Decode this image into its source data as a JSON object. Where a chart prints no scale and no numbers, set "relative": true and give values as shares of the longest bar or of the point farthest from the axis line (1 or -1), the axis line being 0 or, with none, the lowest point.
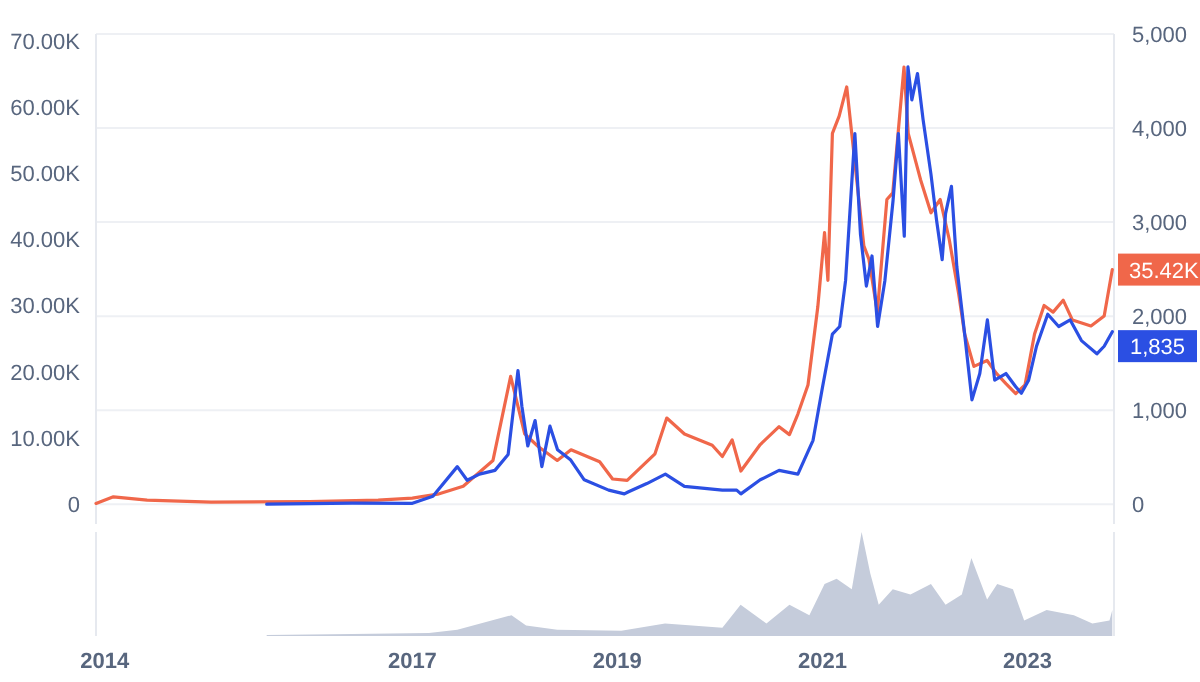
{
  "chart_data": [
    {
      "type": "line",
      "xlim": [
        "2013-12-01",
        "2023-11-05"
      ],
      "ylim": [
        -3,
        71
      ],
      "y2lim": [
        -210,
        5000
      ],
      "yticks": [
        0,
        {
          "value": 10,
          "label": "10.00K"
        },
        {
          "value": 20,
          "label": "20.00K"
        },
        {
          "value": 30,
          "label": "30.00K"
        },
        {
          "value": 40,
          "label": "40.00K"
        },
        {
          "value": 50,
          "label": "50.00K"
        },
        {
          "value": 60,
          "label": "60.00K"
        },
        {
          "value": 70,
          "label": "70.00K"
        }
      ],
      "y2ticks": [
        0,
        {
          "value": 1000,
          "label": "1,000"
        },
        {
          "value": 2000,
          "label": "2,000"
        },
        {
          "value": 3000,
          "label": "3,000"
        },
        {
          "value": 4000,
          "label": "4,000"
        },
        {
          "value": 5000,
          "label": "5,000"
        }
      ],
      "grid": "y",
      "tick_labels": "y",
      "series": [
        {
          "color": "#f0674a",
          "x": [
            "2013-12-01",
            "2014-02-01",
            "2014-06-01",
            "2015-01-15",
            "2016-01-01",
            "2016-09-01",
            "2017-01-01",
            "2017-04-01",
            "2017-07-01",
            "2017-10-15",
            "2017-12-17",
            "2018-02-05",
            "2018-03-25",
            "2018-06-01",
            "2018-07-20",
            "2018-10-30",
            "2018-12-15",
            "2019-02-05",
            "2019-05-15",
            "2019-06-26",
            "2019-08-28",
            "2019-12-05",
            "2020-01-10",
            "2020-02-14",
            "2020-03-16",
            "2020-05-24",
            "2020-07-30",
            "2020-09-05",
            "2020-10-05",
            "2020-11-10",
            "2020-12-15",
            "2021-01-08",
            "2021-01-20",
            "2021-02-05",
            "2021-03-01",
            "2021-03-28",
            "2021-04-25",
            "2021-05-28",
            "2021-06-15",
            "2021-07-15",
            "2021-08-18",
            "2021-09-08",
            "2021-10-18",
            "2021-11-02",
            "2021-12-16",
            "2022-01-22",
            "2022-02-24",
            "2022-03-28",
            "2022-05-01",
            "2022-05-22",
            "2022-06-24",
            "2022-08-10",
            "2022-09-13",
            "2022-10-16",
            "2022-11-20",
            "2022-12-23",
            "2023-01-26",
            "2023-03-01",
            "2023-04-02",
            "2023-05-08",
            "2023-06-10",
            "2023-08-15",
            "2023-10-01",
            "2023-10-30"
          ],
          "values": [
            0.1,
            1.1,
            0.6,
            0.3,
            0.4,
            0.6,
            0.9,
            1.5,
            2.7,
            6.6,
            19.3,
            10.6,
            8.7,
            6.6,
            8.2,
            6.4,
            3.8,
            3.6,
            7.6,
            13,
            10.6,
            8.9,
            7.2,
            9.7,
            5,
            9,
            11.7,
            10.5,
            13.6,
            18,
            29.8,
            41,
            33.8,
            56,
            58.6,
            63,
            52,
            39,
            37,
            29,
            46,
            47,
            66,
            56,
            49,
            44,
            46,
            40,
            31.7,
            25.7,
            20.8,
            21.7,
            19.7,
            18.2,
            16.7,
            18,
            25.7,
            30,
            29,
            30.8,
            27.8,
            26.9,
            28.4,
            35.42
          ],
          "value_labels": [
            null,
            null,
            null,
            null,
            null,
            null,
            null,
            null,
            null,
            null,
            null,
            null,
            null,
            null,
            null,
            null,
            null,
            null,
            null,
            null,
            null,
            null,
            null,
            null,
            null,
            null,
            null,
            null,
            null,
            null,
            null,
            null,
            null,
            null,
            null,
            null,
            null,
            null,
            null,
            null,
            null,
            null,
            null,
            null,
            null,
            null,
            null,
            null,
            null,
            null,
            null,
            null,
            null,
            null,
            null,
            null,
            null,
            null,
            null,
            null,
            null,
            null,
            null,
            "35.42K"
          ]
        },
        {
          "color": "#2b4fe3",
          "axis": "y2",
          "x": [
            "2015-08-01",
            "2016-06-01",
            "2017-01-01",
            "2017-03-15",
            "2017-06-10",
            "2017-07-15",
            "2017-08-28",
            "2017-10-22",
            "2017-12-08",
            "2018-01-12",
            "2018-01-26",
            "2018-02-16",
            "2018-03-14",
            "2018-04-07",
            "2018-05-06",
            "2018-06-02",
            "2018-07-19",
            "2018-09-05",
            "2018-12-01",
            "2019-01-26",
            "2019-02-08",
            "2019-04-16",
            "2019-06-21",
            "2019-08-28",
            "2020-01-10",
            "2020-03-01",
            "2020-03-16",
            "2020-05-24",
            "2020-07-30",
            "2020-10-05",
            "2020-11-28",
            "2021-01-01",
            "2021-02-05",
            "2021-03-03",
            "2021-03-24",
            "2021-04-26",
            "2021-05-16",
            "2021-06-06",
            "2021-06-26",
            "2021-07-16",
            "2021-08-11",
            "2021-09-09",
            "2021-09-28",
            "2021-10-19",
            "2021-11-01",
            "2021-11-15",
            "2021-12-05",
            "2021-12-25",
            "2022-01-22",
            "2022-02-11",
            "2022-03-03",
            "2022-03-15",
            "2022-04-05",
            "2022-04-24",
            "2022-05-22",
            "2022-06-17",
            "2022-07-15",
            "2022-08-11",
            "2022-09-06",
            "2022-10-16",
            "2022-11-20",
            "2022-12-10",
            "2023-01-05",
            "2023-02-02",
            "2023-03-14",
            "2023-04-22",
            "2023-06-02",
            "2023-07-12",
            "2023-09-05",
            "2023-10-01",
            "2023-10-30"
          ],
          "values": [
            1,
            12,
            10,
            85,
            400,
            255,
            320,
            360,
            530,
            1420,
            1040,
            620,
            890,
            400,
            830,
            580,
            470,
            260,
            150,
            110,
            130,
            220,
            320,
            190,
            150,
            150,
            110,
            260,
            360,
            320,
            680,
            1250,
            1810,
            1890,
            2380,
            3940,
            2870,
            2320,
            2640,
            1890,
            2380,
            3230,
            3940,
            2850,
            4650,
            4300,
            4580,
            4090,
            3510,
            3020,
            2600,
            3090,
            3380,
            2530,
            1810,
            1110,
            1390,
            1960,
            1320,
            1390,
            1250,
            1180,
            1320,
            1680,
            2020,
            1890,
            1960,
            1740,
            1600,
            1680,
            1835
          ],
          "value_labels": [
            null,
            null,
            null,
            null,
            null,
            null,
            null,
            null,
            null,
            null,
            null,
            null,
            null,
            null,
            null,
            null,
            null,
            null,
            null,
            null,
            null,
            null,
            null,
            null,
            null,
            null,
            null,
            null,
            null,
            null,
            null,
            null,
            null,
            null,
            null,
            null,
            null,
            null,
            null,
            null,
            null,
            null,
            null,
            null,
            null,
            null,
            null,
            null,
            null,
            null,
            null,
            null,
            null,
            null,
            null,
            null,
            null,
            null,
            null,
            null,
            null,
            null,
            null,
            null,
            null,
            null,
            null,
            null,
            null,
            null,
            "1,835"
          ]
        }
      ]
    },
    {
      "type": "area",
      "relative": true,
      "xlim": [
        "2013-12-01",
        "2023-11-05"
      ],
      "tick_labels": "x",
      "xticks": [
        {
          "value": "2014-01-01",
          "label": "2014"
        },
        {
          "value": "2017-01-01",
          "label": "2017"
        },
        {
          "value": "2019-01-01",
          "label": "2019"
        },
        {
          "value": "2021-01-01",
          "label": "2021"
        },
        {
          "value": "2023-01-01",
          "label": "2023"
        }
      ],
      "series": [
        {
          "color": "#c5ccdb",
          "x": [
            "2015-08-01",
            "2016-06-01",
            "2017-03-01",
            "2017-06-10",
            "2017-12-20",
            "2018-02-10",
            "2018-06-01",
            "2019-01-15",
            "2019-06-20",
            "2020-01-10",
            "2020-03-15",
            "2020-06-15",
            "2020-09-05",
            "2020-11-15",
            "2021-01-08",
            "2021-02-20",
            "2021-04-15",
            "2021-05-20",
            "2021-06-20",
            "2021-07-20",
            "2021-09-08",
            "2021-11-10",
            "2022-01-22",
            "2022-03-15",
            "2022-05-12",
            "2022-06-15",
            "2022-08-10",
            "2022-09-15",
            "2022-11-10",
            "2022-12-20",
            "2023-03-10",
            "2023-06-15",
            "2023-08-20",
            "2023-10-20",
            "2023-10-30"
          ],
          "values": [
            0.01,
            0.02,
            0.03,
            0.06,
            0.2,
            0.1,
            0.06,
            0.05,
            0.12,
            0.08,
            0.3,
            0.12,
            0.3,
            0.2,
            0.5,
            0.55,
            0.45,
            1,
            0.6,
            0.3,
            0.45,
            0.4,
            0.5,
            0.3,
            0.4,
            0.75,
            0.35,
            0.5,
            0.45,
            0.15,
            0.25,
            0.2,
            0.12,
            0.15,
            0.25
          ]
        }
      ]
    }
  ]
}
